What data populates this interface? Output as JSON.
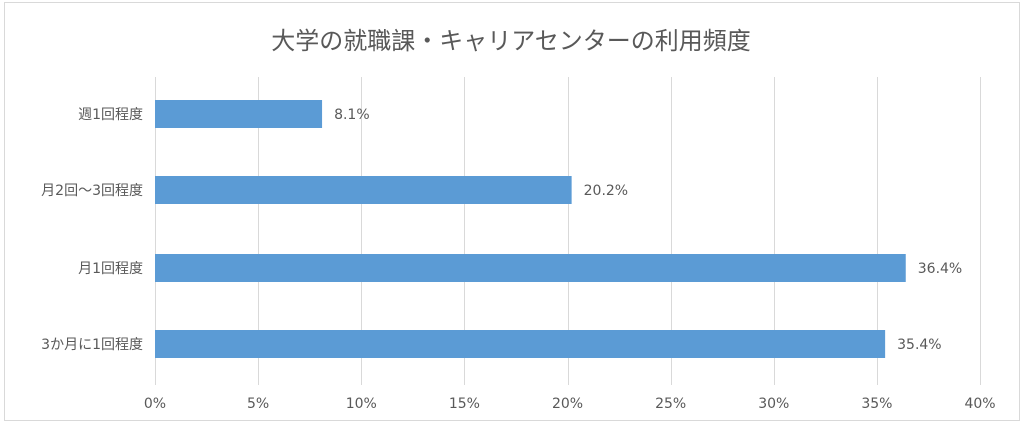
{
  "chart_data": {
    "type": "bar",
    "orientation": "horizontal",
    "title": "大学の就職課・キャリアセンターの利用頻度",
    "categories": [
      "週1回程度",
      "月2回～3回程度",
      "月1回程度",
      "3か月に1回程度"
    ],
    "values": [
      8.1,
      20.2,
      36.4,
      35.4
    ],
    "data_labels": [
      "8.1%",
      "20.2%",
      "36.4%",
      "35.4%"
    ],
    "xlim": [
      0,
      40
    ],
    "x_ticks": [
      0,
      5,
      10,
      15,
      20,
      25,
      30,
      35,
      40
    ],
    "x_tick_labels": [
      "0%",
      "5%",
      "10%",
      "15%",
      "20%",
      "25%",
      "30%",
      "35%",
      "40%"
    ],
    "grid": true,
    "legend": "none",
    "bar_color": "#5b9bd5",
    "grid_color": "#d9d9d9",
    "text_color": "#595959"
  }
}
